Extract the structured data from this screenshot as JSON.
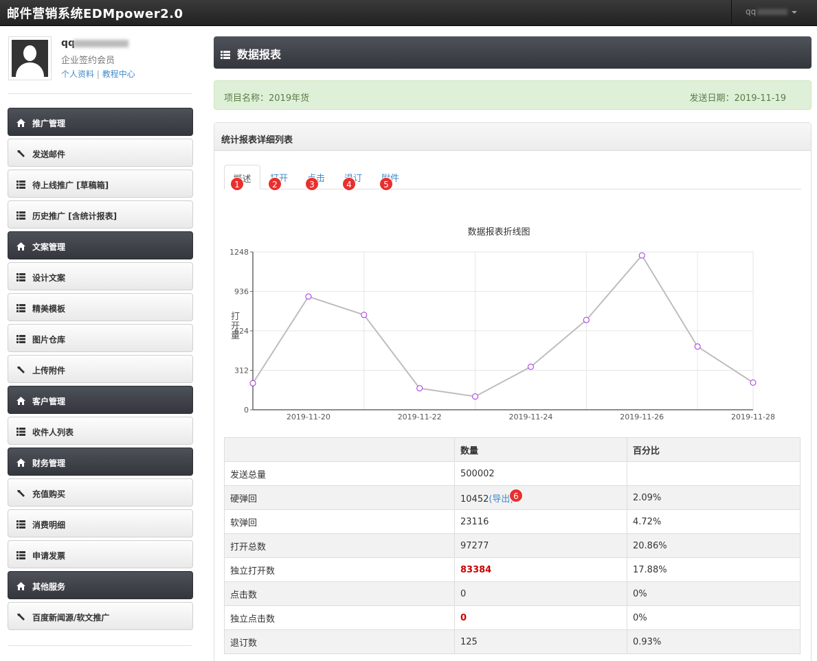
{
  "app": {
    "title": "邮件营销系统EDMpower2.0",
    "user_menu": "qq"
  },
  "profile": {
    "name": "qq",
    "role": "企业签约会员",
    "link_profile": "个人资料",
    "link_sep": "|",
    "link_tutorial": "教程中心"
  },
  "sidebar": {
    "items": [
      {
        "label": "推广管理",
        "type": "section",
        "icon": "home-icon"
      },
      {
        "label": "发送邮件",
        "type": "sub",
        "icon": "wrench-icon"
      },
      {
        "label": "待上线推广 [草稿箱]",
        "type": "sub",
        "icon": "list-icon"
      },
      {
        "label": "历史推广 [含统计报表]",
        "type": "sub",
        "icon": "list-icon"
      },
      {
        "label": "文案管理",
        "type": "section",
        "icon": "home-icon"
      },
      {
        "label": "设计文案",
        "type": "sub",
        "icon": "list-icon"
      },
      {
        "label": "精美模板",
        "type": "sub",
        "icon": "list-icon"
      },
      {
        "label": "图片仓库",
        "type": "sub",
        "icon": "list-icon"
      },
      {
        "label": "上传附件",
        "type": "sub",
        "icon": "wrench-icon"
      },
      {
        "label": "客户管理",
        "type": "section",
        "icon": "home-icon"
      },
      {
        "label": "收件人列表",
        "type": "sub",
        "icon": "list-icon"
      },
      {
        "label": "财务管理",
        "type": "section",
        "icon": "home-icon"
      },
      {
        "label": "充值购买",
        "type": "sub",
        "icon": "wrench-icon"
      },
      {
        "label": "消费明细",
        "type": "sub",
        "icon": "list-icon"
      },
      {
        "label": "申请发票",
        "type": "sub",
        "icon": "list-icon"
      },
      {
        "label": "其他服务",
        "type": "section",
        "icon": "home-icon"
      },
      {
        "label": "百度新闻源/软文推广",
        "type": "sub",
        "icon": "wrench-icon"
      }
    ]
  },
  "main": {
    "header": "数据报表",
    "project": "项目名称：2019年货",
    "send_date": "发送日期：2019-11-19",
    "panel_title": "统计报表详细列表",
    "tabs": [
      {
        "label": "概述",
        "badge": "1",
        "active": true
      },
      {
        "label": "打开",
        "badge": "2",
        "active": false
      },
      {
        "label": "点击",
        "badge": "3",
        "active": false
      },
      {
        "label": "退订",
        "badge": "4",
        "active": false
      },
      {
        "label": "附件",
        "badge": "5",
        "active": false
      }
    ]
  },
  "chart_data": {
    "type": "line",
    "title": "数据报表折线图",
    "ylabel": "打开量",
    "xlabel": "",
    "x": [
      "2019-11-19",
      "2019-11-20",
      "2019-11-21",
      "2019-11-22",
      "2019-11-23",
      "2019-11-24",
      "2019-11-25",
      "2019-11-26",
      "2019-11-27",
      "2019-11-28"
    ],
    "x_tick_labels": [
      "2019-11-20",
      "2019-11-22",
      "2019-11-24",
      "2019-11-26",
      "2019-11-28"
    ],
    "series": [
      {
        "values": [
          210,
          895,
          750,
          170,
          105,
          340,
          710,
          1220,
          500,
          215
        ]
      }
    ],
    "ylim": [
      0,
      1248
    ],
    "yticks": [
      0,
      312,
      624,
      936,
      1248
    ],
    "grid": true,
    "line_color": "#bdbdbd",
    "marker_color": "#a12ee0"
  },
  "table": {
    "headers": [
      "",
      "数量",
      "百分比"
    ],
    "rows": [
      {
        "label": "发送总量",
        "count": "500002",
        "percent": ""
      },
      {
        "label": "硬弹回",
        "count": "10452",
        "export": "(导出)",
        "badge": "6",
        "percent": "2.09%"
      },
      {
        "label": "软弹回",
        "count": "23116",
        "percent": "4.72%"
      },
      {
        "label": "打开总数",
        "count": "97277",
        "percent": "20.86%"
      },
      {
        "label": "独立打开数",
        "count": "83384",
        "percent": "17.88%",
        "red": true
      },
      {
        "label": "点击数",
        "count": "0",
        "percent": "0%"
      },
      {
        "label": "独立点击数",
        "count": "0",
        "percent": "0%",
        "red": true
      },
      {
        "label": "退订数",
        "count": "125",
        "percent": "0.93%"
      }
    ]
  }
}
